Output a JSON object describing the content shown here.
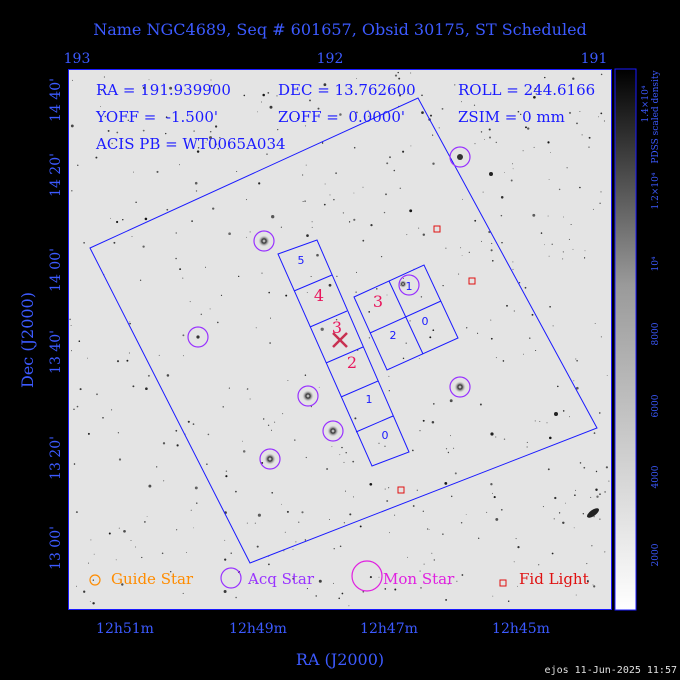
{
  "header": {
    "title": "Name NGC4689, Seq # 601657, Obsid 30175, ST Scheduled"
  },
  "top_axis": {
    "ticks": [
      "193",
      "192",
      "191"
    ]
  },
  "left_axis": {
    "label": "Dec (J2000)",
    "ticks": [
      "14 40'",
      "14 20'",
      "14 00'",
      "13 40'",
      "13 20'",
      "13 00'"
    ]
  },
  "bottom_axis": {
    "label": "RA (J2000)",
    "ticks": [
      "12h51m",
      "12h49m",
      "12h47m",
      "12h45m"
    ]
  },
  "info": {
    "ra": "RA = 191.939900",
    "dec": "DEC = 13.762600",
    "roll": "ROLL = 244.6166",
    "yoff": "YOFF =  -1.500'",
    "zoff": "ZOFF =  0.0000'",
    "zsim": "ZSIM = 0 mm",
    "acis_pb": "ACIS PB = WT0065A034"
  },
  "chips": {
    "s_labels": [
      "5",
      "4",
      "3",
      "2",
      "1",
      "0"
    ],
    "i_labels": [
      "1",
      "3",
      "2",
      "0"
    ]
  },
  "legend": {
    "guide": "Guide Star",
    "acq": "Acq Star",
    "mon": "Mon Star",
    "fid": "Fid Light"
  },
  "colorbar": {
    "title": "PDSS scaled density",
    "ticks": [
      "2000",
      "4000",
      "6000",
      "8000",
      "10⁴",
      "1.2×10⁴",
      "1.4×10⁴"
    ]
  },
  "footer": {
    "stamp": "ejos 11-Jun-2025 11:57"
  },
  "colors": {
    "frame": "#1a1aff",
    "axis_text": "#3c5aff",
    "guide": "#ff8c00",
    "acq": "#9933ff",
    "mon": "#e020e0",
    "fid": "#e01010",
    "chip_label": "#e8175d"
  }
}
